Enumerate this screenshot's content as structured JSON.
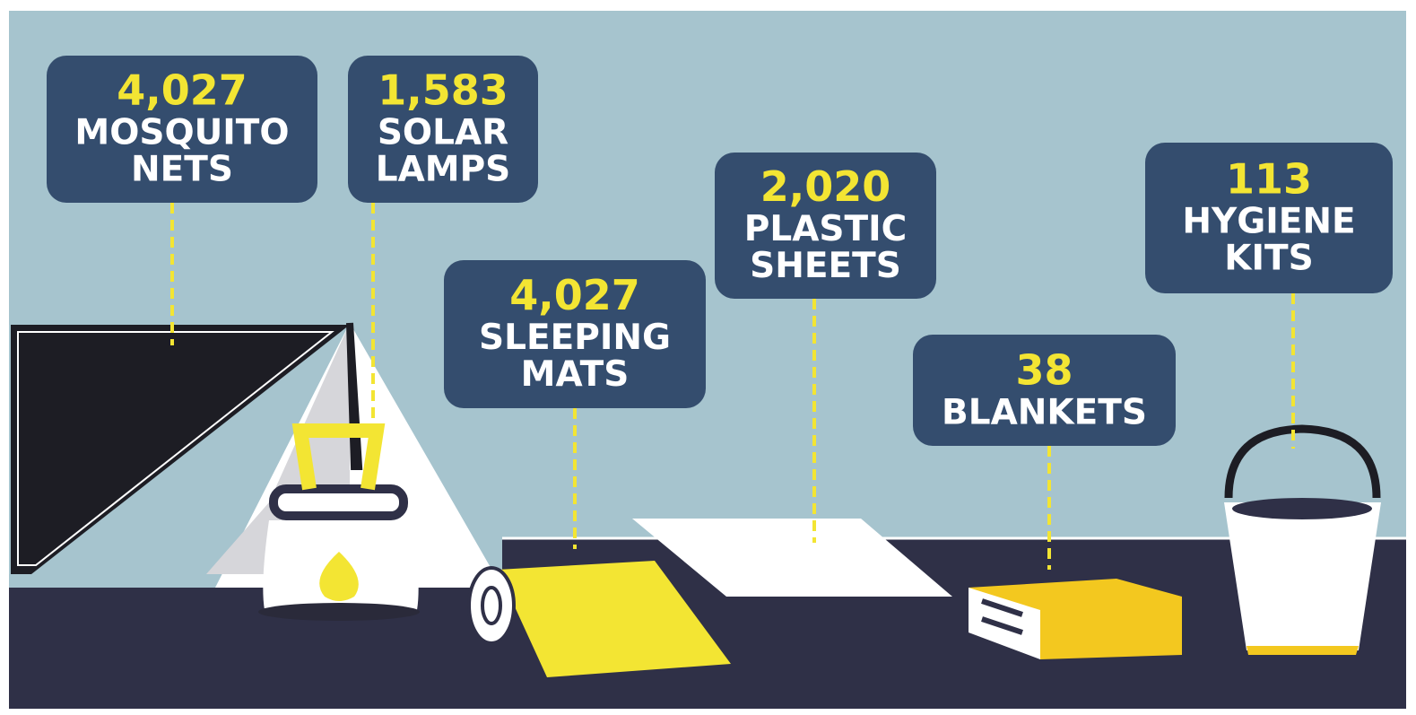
{
  "items": [
    {
      "count": "4,027",
      "label": [
        "MOSQUITO",
        "NETS"
      ]
    },
    {
      "count": "1,583",
      "label": [
        "SOLAR",
        "LAMPS"
      ]
    },
    {
      "count": "4,027",
      "label": [
        "SLEEPING",
        "MATS"
      ]
    },
    {
      "count": "2,020",
      "label": [
        "PLASTIC",
        "SHEETS"
      ]
    },
    {
      "count": "38",
      "label": [
        "BLANKETS"
      ]
    },
    {
      "count": "113",
      "label": [
        "HYGIENE",
        "KITS"
      ]
    }
  ]
}
